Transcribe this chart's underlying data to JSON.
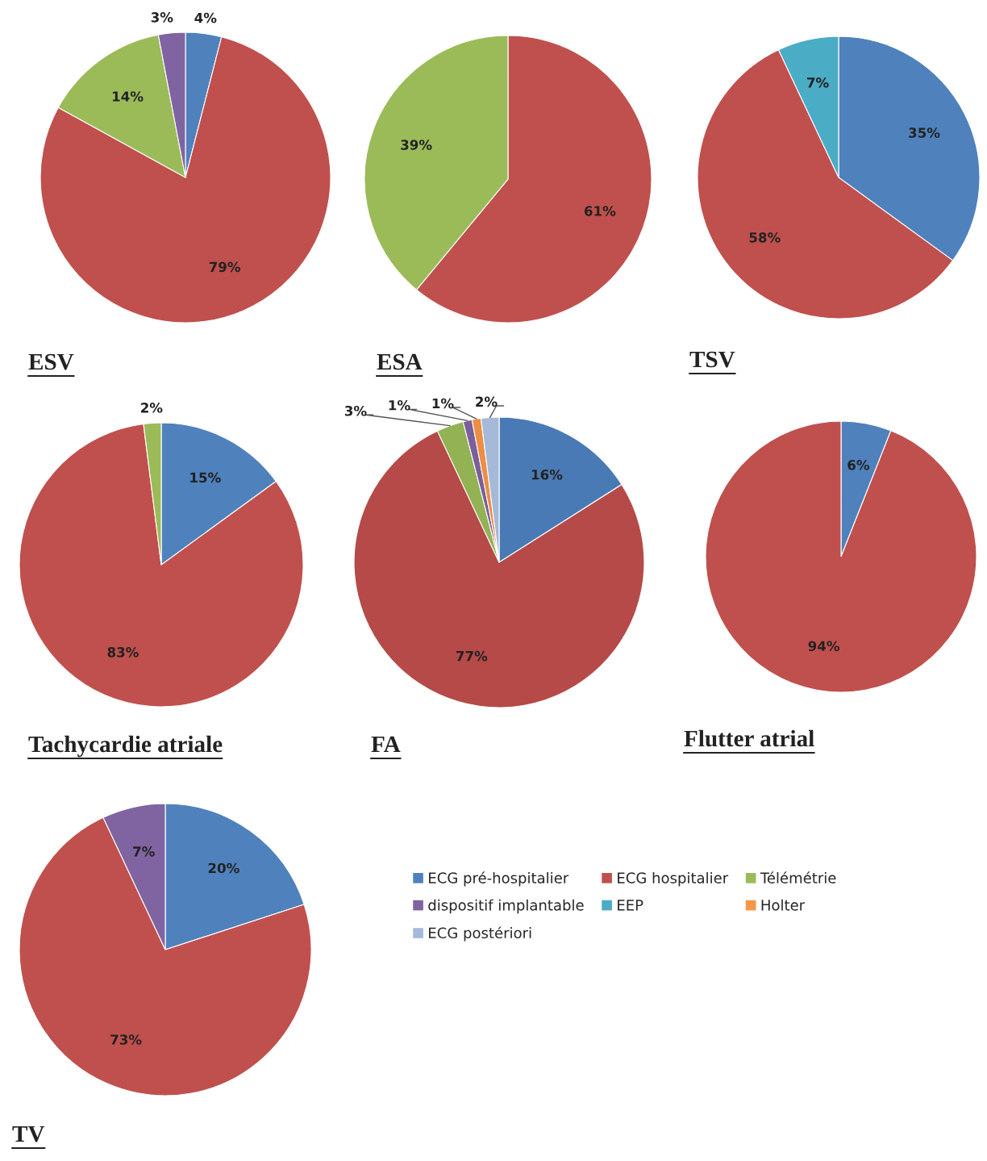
{
  "chart_data": [
    {
      "type": "pie",
      "title": "ESV",
      "categories": [
        null,
        null,
        null,
        null
      ],
      "values": [
        4,
        79,
        14,
        3
      ],
      "value_labels": [
        "4%",
        "79%",
        "14%",
        "3%"
      ],
      "colors": [
        "#4f81bd",
        "#c0504d",
        "#9bbb59",
        "#8064a2"
      ]
    },
    {
      "type": "pie",
      "title": "ESA",
      "categories": [
        null,
        null
      ],
      "values": [
        61,
        39
      ],
      "value_labels": [
        "61%",
        "39%"
      ],
      "colors": [
        "#c0504d",
        "#9bbb59"
      ]
    },
    {
      "type": "pie",
      "title": "TSV",
      "categories": [
        null,
        null,
        null
      ],
      "values": [
        35,
        58,
        7
      ],
      "value_labels": [
        "35%",
        "58%",
        "7%"
      ],
      "colors": [
        "#4f81bd",
        "#c0504d",
        "#4bacc6"
      ]
    },
    {
      "type": "pie",
      "title": "Tachycardie atriale",
      "categories": [
        null,
        null,
        null
      ],
      "values": [
        15,
        83,
        2
      ],
      "value_labels": [
        "15%",
        "83%",
        "2%"
      ],
      "colors": [
        "#4f81bd",
        "#c0504d",
        "#9bbb59"
      ]
    },
    {
      "type": "pie",
      "title": "FA",
      "categories": [
        null,
        null,
        null,
        null,
        null,
        null
      ],
      "values": [
        16,
        77,
        3,
        1,
        1,
        2
      ],
      "value_labels": [
        "16%",
        "77%",
        "3%",
        "1%",
        "1%",
        "2%"
      ],
      "colors": [
        "#4a7ab5",
        "#b54a48",
        "#93b254",
        "#7a5f9b",
        "#ec8e43",
        "#a5b9d9"
      ]
    },
    {
      "type": "pie",
      "title": "Flutter atrial",
      "categories": [
        null,
        null
      ],
      "values": [
        6,
        94
      ],
      "value_labels": [
        "6%",
        "94%"
      ],
      "colors": [
        "#4f81bd",
        "#c0504d"
      ]
    },
    {
      "type": "pie",
      "title": "TV",
      "categories": [
        null,
        null,
        null
      ],
      "values": [
        20,
        73,
        7
      ],
      "value_labels": [
        "20%",
        "73%",
        "7%"
      ],
      "colors": [
        "#4f81bd",
        "#c0504d",
        "#8064a2"
      ]
    },
    {
      "type": "other",
      "categories": [
        "ECG pré-hospitalier",
        "ECG hospitalier",
        "Télémétrie",
        "dispositif implantable",
        "EEP",
        "Holter",
        "ECG postériori"
      ],
      "colors": [
        "#4f81bd",
        "#c0504d",
        "#9bbb59",
        "#8064a2",
        "#4bacc6",
        "#f79646",
        "#a5b9d9"
      ]
    }
  ]
}
